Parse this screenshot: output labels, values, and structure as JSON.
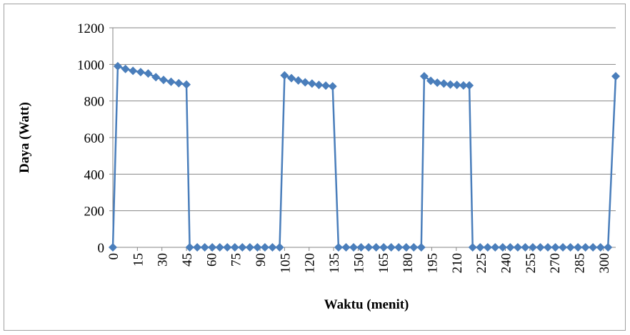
{
  "chart_data": {
    "type": "line",
    "xlabel": "Waktu (menit)",
    "ylabel": "Daya (Watt)",
    "xlim": [
      0,
      307.5
    ],
    "ylim": [
      0,
      1200
    ],
    "xticks": [
      0,
      15,
      30,
      45,
      60,
      75,
      90,
      105,
      120,
      135,
      150,
      165,
      180,
      195,
      210,
      225,
      240,
      255,
      270,
      285,
      300
    ],
    "yticks": [
      0,
      200,
      400,
      600,
      800,
      1000,
      1200
    ],
    "grid": true,
    "series": [
      {
        "color": "#4a7ebb",
        "x": [
          0,
          3,
          7.7,
          12.3,
          17,
          21.6,
          26.3,
          31,
          35.6,
          40.3,
          45,
          47,
          51.6,
          56.2,
          60.8,
          65.4,
          70,
          74.6,
          79.2,
          83.8,
          88.4,
          93,
          97.6,
          102,
          105,
          109.2,
          113.4,
          117.6,
          121.8,
          126,
          130.2,
          134.4,
          138,
          142.6,
          147.2,
          151.8,
          156.4,
          161,
          165.6,
          170.2,
          174.8,
          179.4,
          184,
          188.6,
          190.4,
          194.4,
          198.4,
          202.4,
          206.4,
          210.4,
          214.4,
          218,
          220,
          224.6,
          229.2,
          233.8,
          238.4,
          243,
          247.6,
          252.2,
          256.8,
          261.4,
          266,
          270.6,
          275.2,
          279.8,
          284.4,
          289,
          293.6,
          298.2,
          302.8,
          307.5
        ],
        "values": [
          0,
          990,
          975,
          965,
          958,
          950,
          930,
          915,
          905,
          897,
          890,
          0,
          0,
          0,
          0,
          0,
          0,
          0,
          0,
          0,
          0,
          0,
          0,
          0,
          940,
          925,
          912,
          902,
          895,
          888,
          884,
          880,
          0,
          0,
          0,
          0,
          0,
          0,
          0,
          0,
          0,
          0,
          0,
          0,
          935,
          910,
          900,
          895,
          890,
          888,
          885,
          885,
          0,
          0,
          0,
          0,
          0,
          0,
          0,
          0,
          0,
          0,
          0,
          0,
          0,
          0,
          0,
          0,
          0,
          0,
          0,
          935
        ]
      }
    ]
  }
}
